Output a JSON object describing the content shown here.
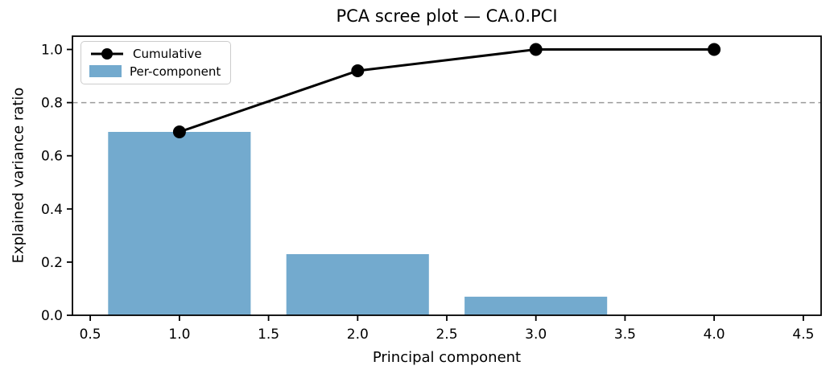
{
  "figure": {
    "background": "#ffffff"
  },
  "chart_data": {
    "type": "bar",
    "title": "PCA scree plot — CA.0.PCI",
    "xlabel": "Principal component",
    "ylabel": "Explained variance ratio",
    "xlim": [
      0.4,
      4.6
    ],
    "ylim": [
      0.0,
      1.05
    ],
    "x": [
      1,
      2,
      3,
      4
    ],
    "bar_width": 0.8,
    "series": [
      {
        "name": "Cumulative",
        "type": "line",
        "color": "#000000",
        "marker": "circle",
        "values": [
          0.69,
          0.92,
          1.0,
          1.0
        ]
      },
      {
        "name": "Per-component",
        "type": "bar",
        "color": "#73aace",
        "values": [
          0.69,
          0.23,
          0.07,
          0.0
        ]
      }
    ],
    "threshold_line": {
      "y": 0.8,
      "color": "#9b9b9b",
      "style": "dashed"
    },
    "xticks": {
      "values": [
        0.5,
        1.0,
        1.5,
        2.0,
        2.5,
        3.0,
        3.5,
        4.0,
        4.5
      ],
      "labels": [
        "0.5",
        "1.0",
        "1.5",
        "2.0",
        "2.5",
        "3.0",
        "3.5",
        "4.0",
        "4.5"
      ]
    },
    "yticks": {
      "values": [
        0.0,
        0.2,
        0.4,
        0.6,
        0.8,
        1.0
      ],
      "labels": [
        "0.0",
        "0.2",
        "0.4",
        "0.6",
        "0.8",
        "1.0"
      ]
    },
    "legend": {
      "position": "upper left"
    },
    "grid": false,
    "axis_color": "#000000"
  }
}
